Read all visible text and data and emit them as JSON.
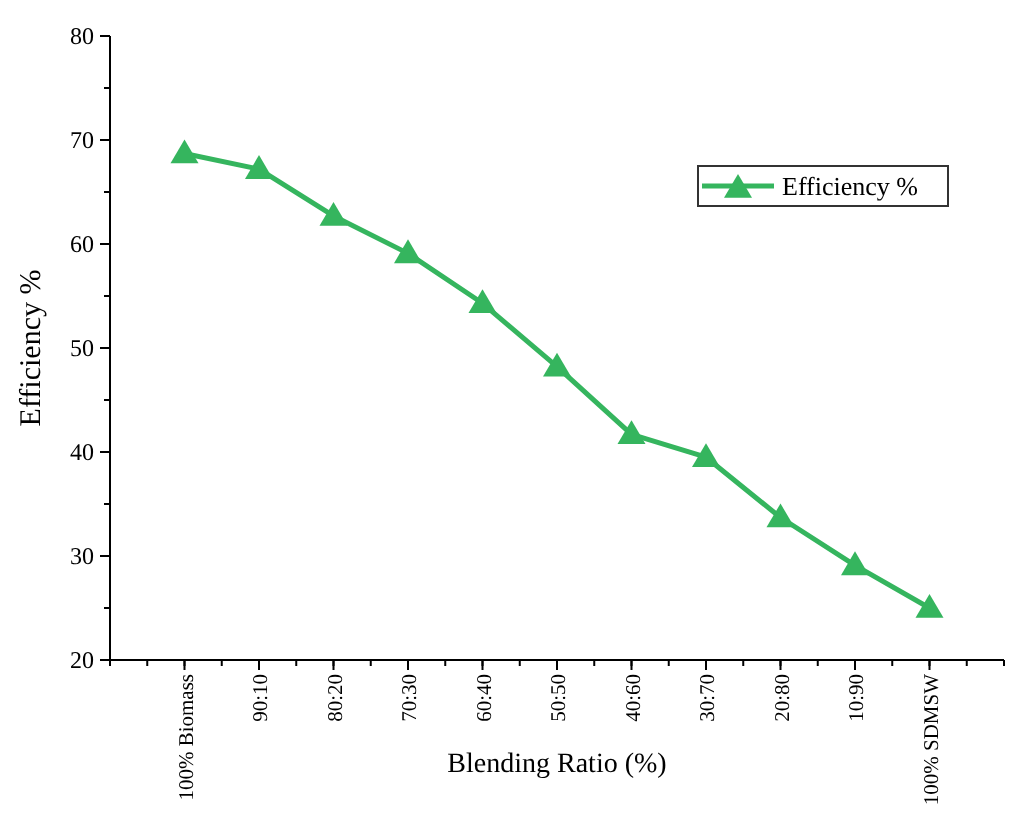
{
  "chart_data": {
    "type": "line",
    "xlabel": "Blending Ratio (%)",
    "ylabel": "Efficiency %",
    "categories": [
      "100% Biomass",
      "90:10",
      "80:20",
      "70:30",
      "60:40",
      "50:50",
      "40:60",
      "30:70",
      "20:80",
      "10:90",
      "100% SDMSW"
    ],
    "series": [
      {
        "name": "Efficiency %",
        "color": "#35b55e",
        "values": [
          68.7,
          67.2,
          62.7,
          59.1,
          54.3,
          48.2,
          41.7,
          39.5,
          33.7,
          29.1,
          25.0
        ]
      }
    ],
    "ylim": [
      20,
      80
    ],
    "yticks": [
      20,
      30,
      40,
      50,
      60,
      70,
      80
    ],
    "marker": "triangle",
    "line_style": "solid",
    "legend": "top right",
    "grid": false
  }
}
